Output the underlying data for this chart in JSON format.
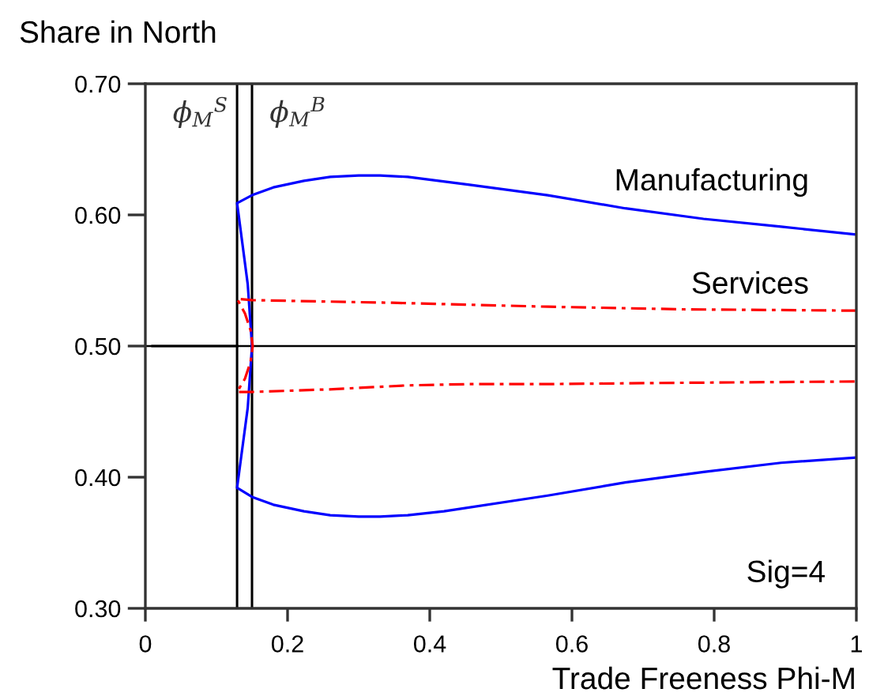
{
  "chart_data": {
    "type": "line",
    "ylabel": "Share in North",
    "xlabel": "Trade Freeness Phi-M",
    "xlim": [
      0,
      1
    ],
    "xticks": [
      0,
      0.2,
      0.4,
      0.6,
      0.8,
      1
    ],
    "ylim": [
      0.3,
      0.7
    ],
    "yticks": [
      {
        "value": 0.3,
        "label": "0.30"
      },
      {
        "value": 0.4,
        "label": "0.40"
      },
      {
        "value": 0.5,
        "label": "0.50"
      },
      {
        "value": 0.6,
        "label": "0.60"
      },
      {
        "value": 0.7,
        "label": "0.70"
      }
    ],
    "line_style": "solid",
    "grid": false,
    "series": [
      {
        "name": "Manufacturing",
        "color": "#0000ff",
        "x": [
          1.0,
          0.894,
          0.785,
          0.675,
          0.566,
          0.456,
          0.369,
          0.33,
          0.3,
          0.26,
          0.223,
          0.18,
          0.15,
          0.129,
          0.144,
          0.15,
          0.144,
          0.129,
          0.15,
          0.18,
          0.223,
          0.26,
          0.3,
          0.33,
          0.369,
          0.42,
          0.566,
          0.675,
          0.785,
          0.894,
          1.0
        ],
        "values": [
          0.585,
          0.591,
          0.597,
          0.605,
          0.615,
          0.623,
          0.629,
          0.63,
          0.63,
          0.629,
          0.626,
          0.621,
          0.615,
          0.609,
          0.547,
          0.5,
          0.453,
          0.392,
          0.385,
          0.379,
          0.374,
          0.371,
          0.37,
          0.37,
          0.371,
          0.374,
          0.386,
          0.396,
          0.404,
          0.411,
          0.415
        ]
      },
      {
        "name": "Services",
        "color": "#ff0000",
        "line_style": "dashed",
        "x": [
          1.0,
          0.757,
          0.566,
          0.347,
          0.15,
          0.129,
          0.14,
          0.148,
          0.151,
          0.148,
          0.14,
          0.129,
          0.15,
          0.259,
          0.369,
          0.456,
          0.566,
          0.757,
          1.0
        ],
        "values": [
          0.527,
          0.528,
          0.53,
          0.533,
          0.535,
          0.536,
          0.525,
          0.512,
          0.5,
          0.488,
          0.475,
          0.465,
          0.465,
          0.467,
          0.47,
          0.471,
          0.471,
          0.472,
          0.473
        ]
      },
      {
        "color": "#000000",
        "x": [
          0.01,
          0.129
        ],
        "values": [
          0.5,
          0.5
        ]
      }
    ],
    "ref_lines": [
      {
        "axis": "y",
        "value": 0.5,
        "color": "#000000"
      },
      {
        "axis": "x",
        "value": 0.129,
        "label": "ϕ$_{M}$$^{S}$",
        "color": "#000000"
      },
      {
        "axis": "x",
        "value": 0.15,
        "label": "ϕ$_{M}$$^{B}$",
        "color": "#000000"
      }
    ],
    "annotations": [
      "Sig=4"
    ]
  }
}
